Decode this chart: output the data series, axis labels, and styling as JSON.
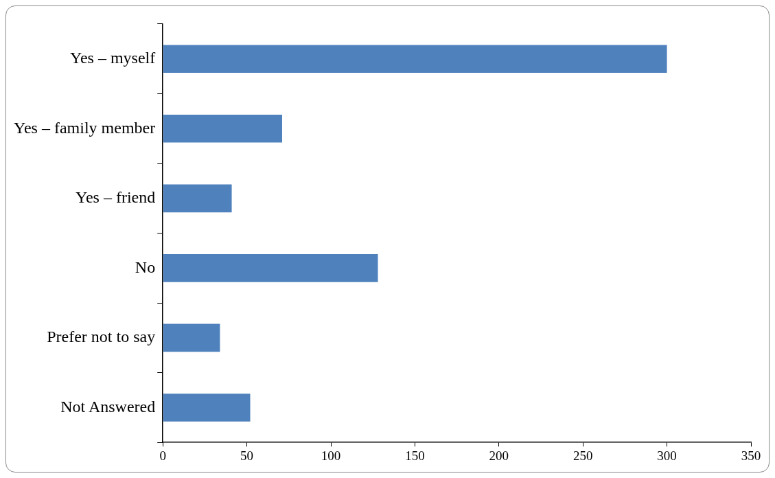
{
  "chart_data": {
    "type": "bar",
    "orientation": "horizontal",
    "categories": [
      "Yes – myself",
      "Yes – family member",
      "Yes – friend",
      "No",
      "Prefer not to say",
      "Not Answered"
    ],
    "values": [
      300,
      71,
      41,
      128,
      34,
      52
    ],
    "color": "#4f81bd",
    "xlim": [
      0,
      350
    ],
    "xticks": [
      0,
      50,
      100,
      150,
      200,
      250,
      300,
      350
    ],
    "grid": false,
    "legend": false
  }
}
